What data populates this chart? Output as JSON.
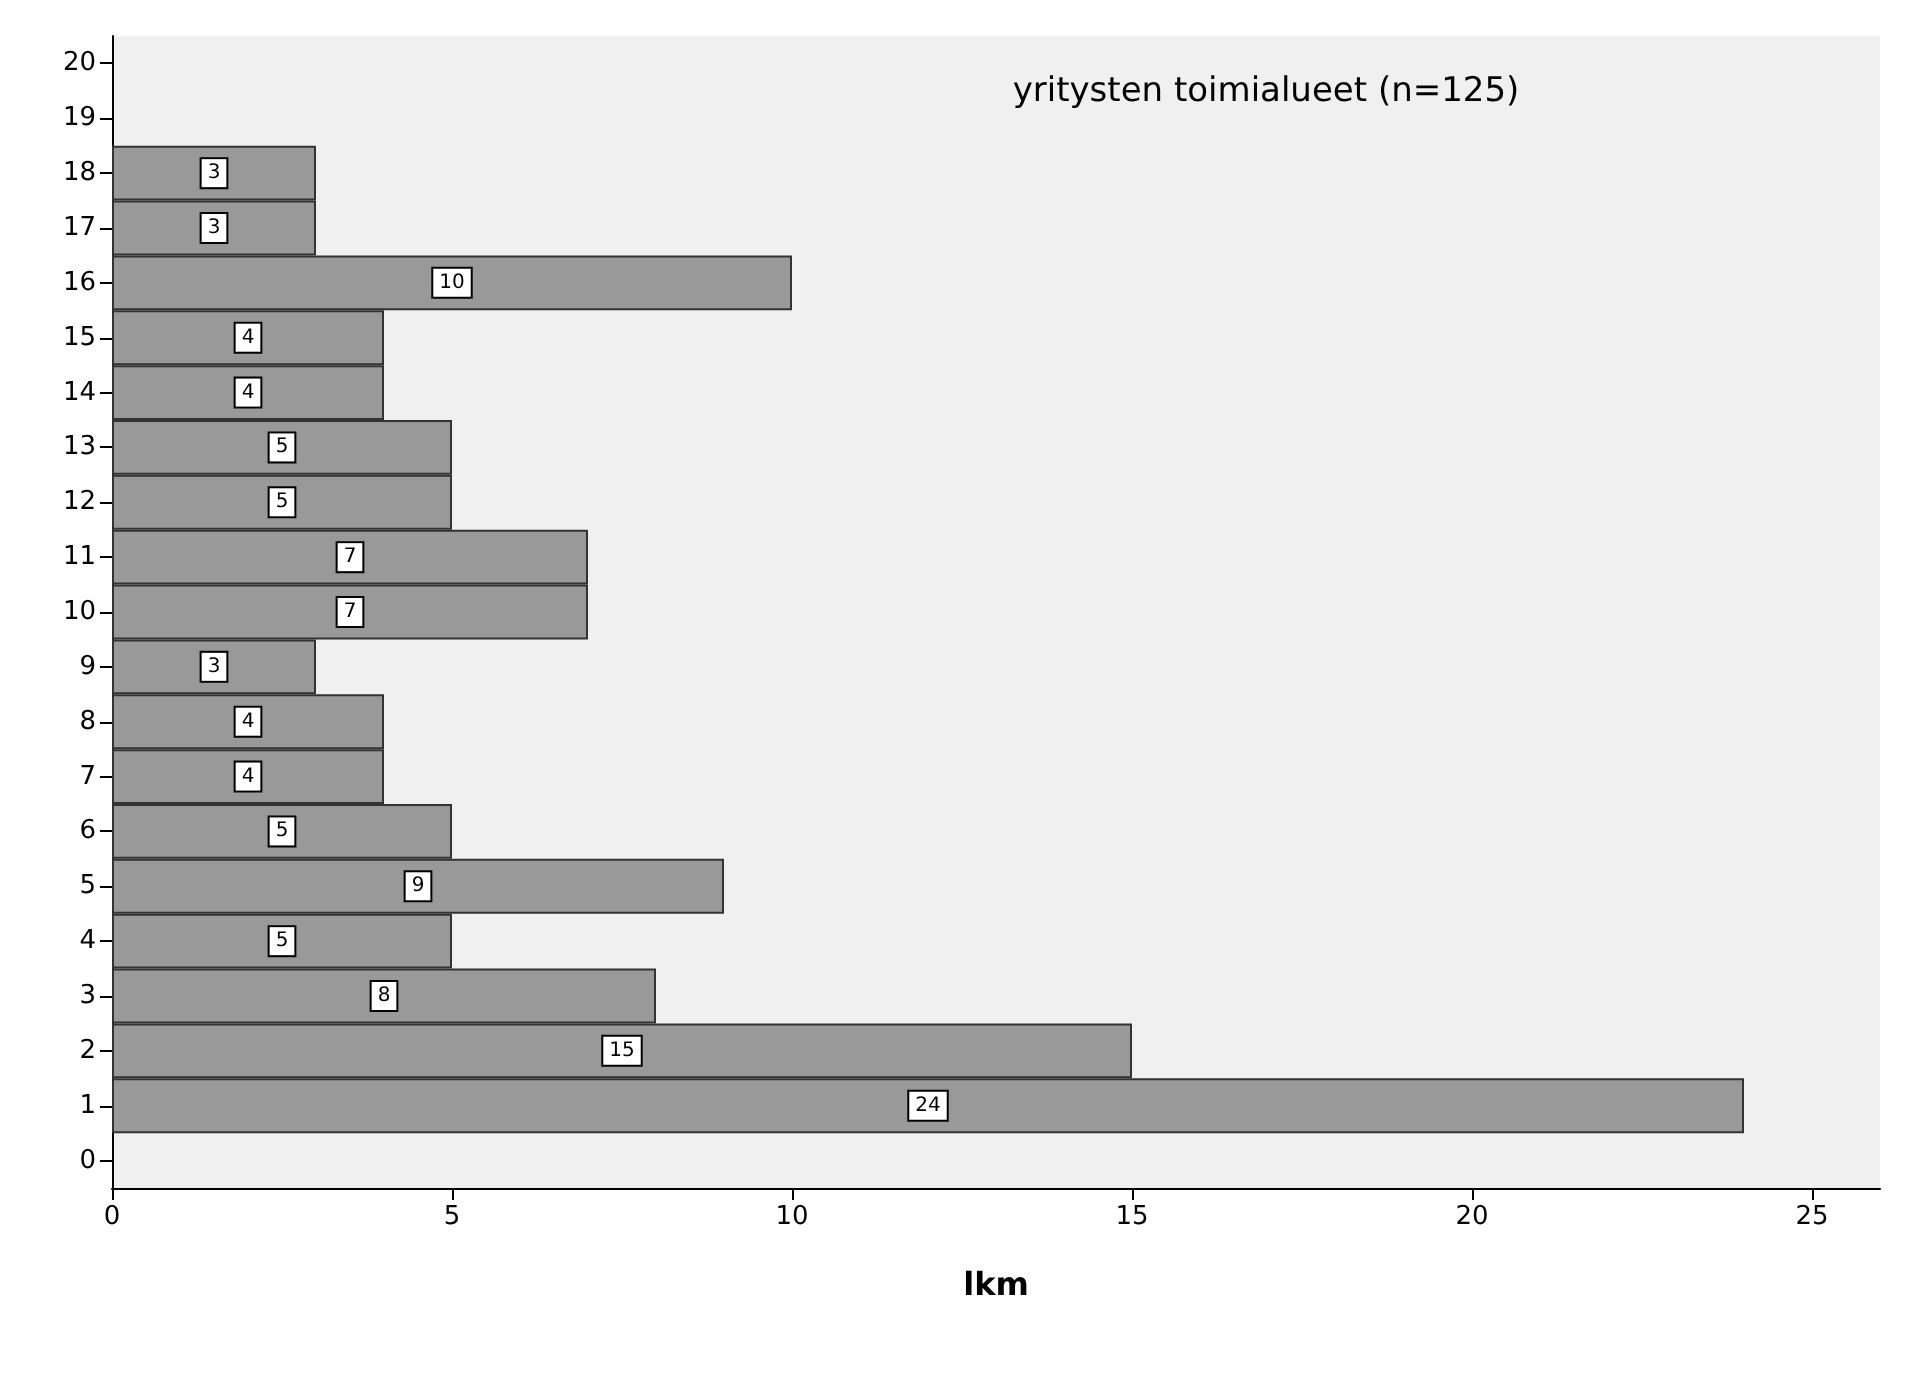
{
  "chart_data": {
    "type": "bar",
    "orientation": "horizontal",
    "title": "yritysten toimialueet (n=125)",
    "xlabel": "lkm",
    "categories": [
      "20",
      "19",
      "18",
      "17",
      "16",
      "15",
      "14",
      "13",
      "12",
      "11",
      "10",
      "9",
      "8",
      "7",
      "6",
      "5",
      "4",
      "3",
      "2",
      "1",
      "0"
    ],
    "values": [
      null,
      null,
      3,
      3,
      10,
      4,
      4,
      5,
      5,
      7,
      7,
      3,
      4,
      4,
      5,
      9,
      5,
      8,
      15,
      24,
      null
    ],
    "color": "#999999",
    "xlim": [
      0,
      26
    ],
    "xticks": [
      0,
      5,
      10,
      15,
      20,
      25
    ],
    "data_labels": true
  }
}
